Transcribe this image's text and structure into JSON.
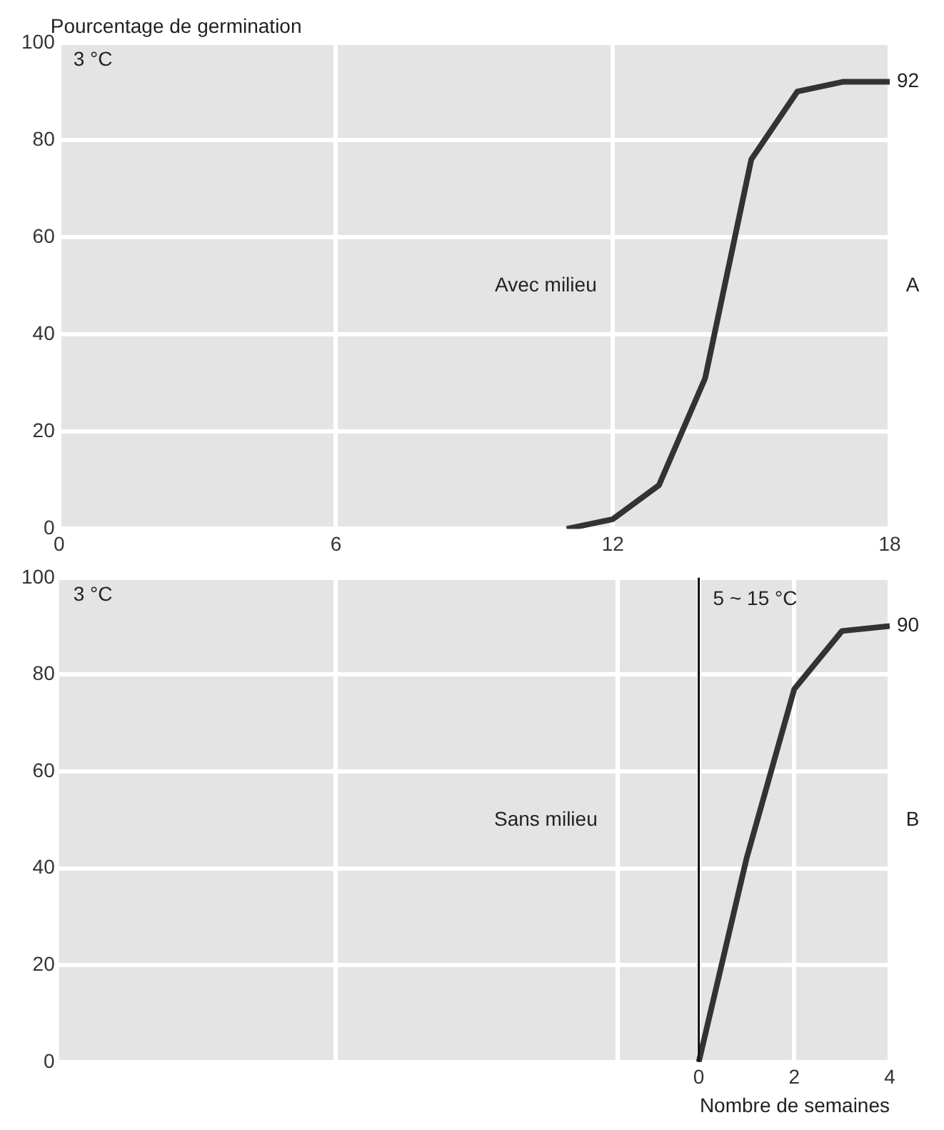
{
  "chart_data": [
    {
      "type": "line",
      "ylabel": "Pourcentage de germination",
      "x": [
        11,
        12,
        13,
        14,
        15,
        16,
        17,
        18
      ],
      "series": [
        {
          "color": "#333333",
          "values": [
            0,
            2,
            9,
            31,
            76,
            90,
            92,
            92
          ]
        }
      ],
      "xlim": [
        0,
        18
      ],
      "xticks": [
        0,
        6,
        12,
        18
      ],
      "ylim": [
        0,
        100
      ],
      "yticks": [
        0,
        20,
        40,
        60,
        80,
        100
      ],
      "grid": true,
      "marker": "none",
      "line_style": "solid",
      "annotations": [
        "3 °C",
        "Avec milieu",
        "A",
        {
          "text": "92",
          "x": 18,
          "y": 92
        }
      ]
    },
    {
      "type": "line",
      "xlabel": "Nombre de semaines",
      "x": [
        0,
        1,
        2,
        3,
        4
      ],
      "series": [
        {
          "color": "#333333",
          "values": [
            0,
            42,
            77,
            89,
            90
          ]
        }
      ],
      "xlim": [
        -13.4,
        4
      ],
      "xticks": [
        {
          "value": -7.6,
          "label": null
        },
        {
          "value": -1.7,
          "label": null
        },
        0,
        2,
        4
      ],
      "ylim": [
        0,
        100
      ],
      "yticks": [
        0,
        20,
        40,
        60,
        80,
        100
      ],
      "grid": true,
      "marker": "none",
      "line_style": "solid",
      "ref_lines": [
        {
          "axis": "x",
          "value": 0,
          "label": "5 ~ 15 °C",
          "color": "#111111"
        }
      ],
      "annotations": [
        "3 °C",
        "Sans milieu",
        "B",
        {
          "text": "90",
          "x": 4,
          "y": 90
        }
      ]
    }
  ]
}
